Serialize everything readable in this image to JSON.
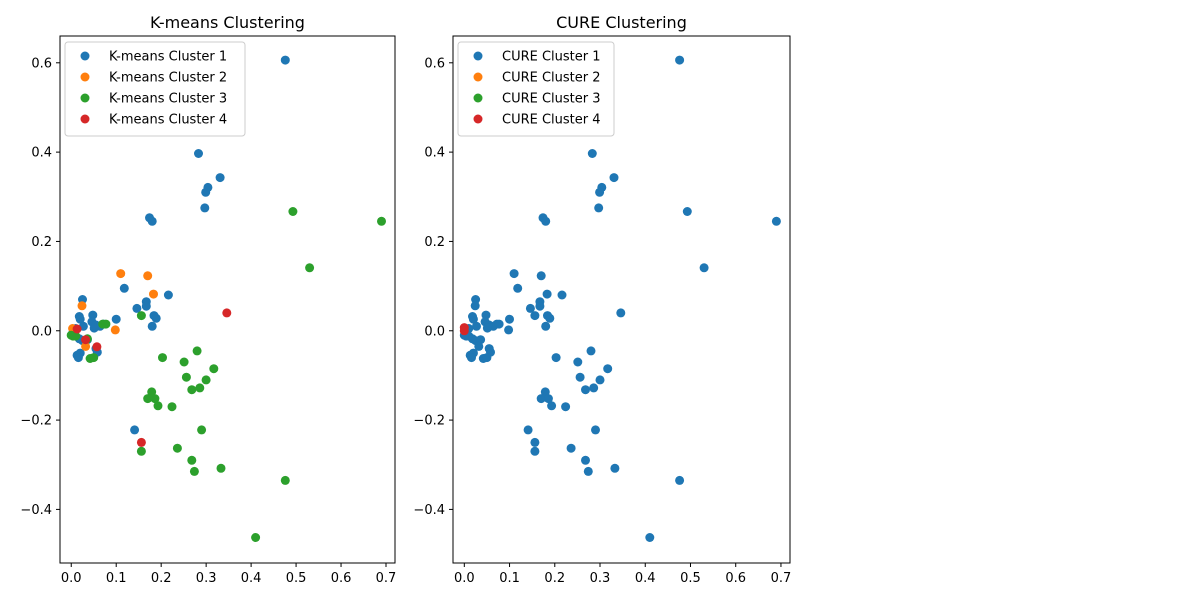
{
  "colors": {
    "tab_blue": "#1f77b4",
    "tab_orange": "#ff7f0e",
    "tab_green": "#2ca02c",
    "tab_red": "#d62728"
  },
  "chart_data": [
    {
      "type": "scatter",
      "title": "K-means Clustering",
      "xlabel": "",
      "ylabel": "",
      "xlim": [
        -0.025,
        0.72
      ],
      "ylim": [
        -0.52,
        0.66
      ],
      "xticks": [
        0.0,
        0.1,
        0.2,
        0.3,
        0.4,
        0.5,
        0.6,
        0.7
      ],
      "yticks": [
        -0.4,
        -0.2,
        0.0,
        0.2,
        0.4,
        0.6
      ],
      "xtick_labels": [
        "0.0",
        "0.1",
        "0.2",
        "0.3",
        "0.4",
        "0.5",
        "0.6",
        "0.7"
      ],
      "ytick_labels": [
        "−0.4",
        "−0.2",
        "0.0",
        "0.2",
        "0.4",
        "0.6"
      ],
      "grid": false,
      "legend": "top-left",
      "series": [
        {
          "name": "K-means Cluster 1",
          "color": "#1f77b4",
          "points": [
            [
              0.476,
              0.606
            ],
            [
              0.283,
              0.397
            ],
            [
              0.331,
              0.343
            ],
            [
              0.304,
              0.321
            ],
            [
              0.299,
              0.31
            ],
            [
              0.297,
              0.275
            ],
            [
              0.174,
              0.253
            ],
            [
              0.18,
              0.245
            ],
            [
              0.118,
              0.095
            ],
            [
              0.216,
              0.08
            ],
            [
              0.025,
              0.07
            ],
            [
              0.167,
              0.065
            ],
            [
              0.167,
              0.055
            ],
            [
              0.146,
              0.05
            ],
            [
              0.048,
              0.035
            ],
            [
              0.184,
              0.034
            ],
            [
              0.189,
              0.028
            ],
            [
              0.1,
              0.026
            ],
            [
              0.018,
              0.032
            ],
            [
              0.02,
              0.026
            ],
            [
              0.046,
              0.02
            ],
            [
              0.055,
              0.013
            ],
            [
              0.064,
              0.01
            ],
            [
              0.072,
              0.015
            ],
            [
              0.027,
              0.01
            ],
            [
              0.051,
              0.006
            ],
            [
              0.18,
              0.01
            ],
            [
              0.01,
              0.005
            ],
            [
              0.004,
              -0.004
            ],
            [
              0.008,
              -0.01
            ],
            [
              0.018,
              -0.018
            ],
            [
              0.025,
              -0.022
            ],
            [
              0.036,
              -0.02
            ],
            [
              0.055,
              -0.04
            ],
            [
              0.058,
              -0.048
            ],
            [
              0.013,
              -0.055
            ],
            [
              0.02,
              -0.05
            ],
            [
              0.016,
              -0.06
            ],
            [
              0.141,
              -0.222
            ]
          ]
        },
        {
          "name": "K-means Cluster 2",
          "color": "#ff7f0e",
          "points": [
            [
              0.11,
              0.128
            ],
            [
              0.17,
              0.123
            ],
            [
              0.183,
              0.082
            ],
            [
              0.024,
              0.056
            ],
            [
              0.098,
              0.002
            ],
            [
              0.003,
              0.005
            ],
            [
              0.032,
              -0.035
            ]
          ]
        },
        {
          "name": "K-means Cluster 3",
          "color": "#2ca02c",
          "points": [
            [
              0.493,
              0.267
            ],
            [
              0.69,
              0.245
            ],
            [
              0.53,
              0.141
            ],
            [
              0.156,
              0.034
            ],
            [
              0.07,
              0.015
            ],
            [
              0.077,
              0.015
            ],
            [
              0.0,
              -0.01
            ],
            [
              0.004,
              -0.012
            ],
            [
              0.01,
              -0.012
            ],
            [
              0.036,
              -0.018
            ],
            [
              0.042,
              -0.062
            ],
            [
              0.05,
              -0.06
            ],
            [
              0.203,
              -0.06
            ],
            [
              0.28,
              -0.045
            ],
            [
              0.251,
              -0.07
            ],
            [
              0.317,
              -0.085
            ],
            [
              0.256,
              -0.104
            ],
            [
              0.3,
              -0.11
            ],
            [
              0.286,
              -0.128
            ],
            [
              0.268,
              -0.132
            ],
            [
              0.179,
              -0.137
            ],
            [
              0.17,
              -0.152
            ],
            [
              0.186,
              -0.152
            ],
            [
              0.193,
              -0.168
            ],
            [
              0.224,
              -0.17
            ],
            [
              0.29,
              -0.222
            ],
            [
              0.236,
              -0.263
            ],
            [
              0.156,
              -0.27
            ],
            [
              0.268,
              -0.29
            ],
            [
              0.333,
              -0.308
            ],
            [
              0.274,
              -0.315
            ],
            [
              0.476,
              -0.335
            ],
            [
              0.41,
              -0.463
            ]
          ]
        },
        {
          "name": "K-means Cluster 4",
          "color": "#d62728",
          "points": [
            [
              0.346,
              0.04
            ],
            [
              0.013,
              0.004
            ],
            [
              0.032,
              -0.02
            ],
            [
              0.057,
              -0.036
            ],
            [
              0.156,
              -0.25
            ]
          ]
        }
      ]
    },
    {
      "type": "scatter",
      "title": "CURE Clustering",
      "xlabel": "",
      "ylabel": "",
      "xlim": [
        -0.025,
        0.72
      ],
      "ylim": [
        -0.52,
        0.66
      ],
      "xticks": [
        0.0,
        0.1,
        0.2,
        0.3,
        0.4,
        0.5,
        0.6,
        0.7
      ],
      "yticks": [
        -0.4,
        -0.2,
        0.0,
        0.2,
        0.4,
        0.6
      ],
      "xtick_labels": [
        "0.0",
        "0.1",
        "0.2",
        "0.3",
        "0.4",
        "0.5",
        "0.6",
        "0.7"
      ],
      "ytick_labels": [
        "−0.4",
        "−0.2",
        "0.0",
        "0.2",
        "0.4",
        "0.6"
      ],
      "grid": false,
      "legend": "top-left",
      "series": [
        {
          "name": "CURE Cluster 1",
          "color": "#1f77b4",
          "points": [
            [
              0.476,
              0.606
            ],
            [
              0.283,
              0.397
            ],
            [
              0.331,
              0.343
            ],
            [
              0.304,
              0.321
            ],
            [
              0.299,
              0.31
            ],
            [
              0.297,
              0.275
            ],
            [
              0.174,
              0.253
            ],
            [
              0.18,
              0.245
            ],
            [
              0.493,
              0.267
            ],
            [
              0.69,
              0.245
            ],
            [
              0.53,
              0.141
            ],
            [
              0.11,
              0.128
            ],
            [
              0.17,
              0.123
            ],
            [
              0.118,
              0.095
            ],
            [
              0.183,
              0.082
            ],
            [
              0.216,
              0.08
            ],
            [
              0.025,
              0.07
            ],
            [
              0.167,
              0.065
            ],
            [
              0.167,
              0.055
            ],
            [
              0.024,
              0.056
            ],
            [
              0.146,
              0.05
            ],
            [
              0.048,
              0.035
            ],
            [
              0.184,
              0.034
            ],
            [
              0.156,
              0.034
            ],
            [
              0.189,
              0.028
            ],
            [
              0.1,
              0.026
            ],
            [
              0.018,
              0.032
            ],
            [
              0.02,
              0.026
            ],
            [
              0.046,
              0.02
            ],
            [
              0.055,
              0.013
            ],
            [
              0.064,
              0.01
            ],
            [
              0.072,
              0.015
            ],
            [
              0.077,
              0.015
            ],
            [
              0.027,
              0.01
            ],
            [
              0.051,
              0.006
            ],
            [
              0.18,
              0.01
            ],
            [
              0.098,
              0.002
            ],
            [
              0.01,
              0.005
            ],
            [
              0.004,
              -0.004
            ],
            [
              0.0,
              -0.01
            ],
            [
              0.004,
              -0.012
            ],
            [
              0.01,
              -0.012
            ],
            [
              0.018,
              -0.018
            ],
            [
              0.025,
              -0.022
            ],
            [
              0.036,
              -0.02
            ],
            [
              0.032,
              -0.035
            ],
            [
              0.055,
              -0.04
            ],
            [
              0.058,
              -0.048
            ],
            [
              0.013,
              -0.055
            ],
            [
              0.02,
              -0.05
            ],
            [
              0.016,
              -0.06
            ],
            [
              0.042,
              -0.062
            ],
            [
              0.05,
              -0.06
            ],
            [
              0.203,
              -0.06
            ],
            [
              0.28,
              -0.045
            ],
            [
              0.251,
              -0.07
            ],
            [
              0.317,
              -0.085
            ],
            [
              0.256,
              -0.104
            ],
            [
              0.3,
              -0.11
            ],
            [
              0.286,
              -0.128
            ],
            [
              0.268,
              -0.132
            ],
            [
              0.179,
              -0.137
            ],
            [
              0.17,
              -0.152
            ],
            [
              0.186,
              -0.152
            ],
            [
              0.193,
              -0.168
            ],
            [
              0.224,
              -0.17
            ],
            [
              0.141,
              -0.222
            ],
            [
              0.29,
              -0.222
            ],
            [
              0.156,
              -0.25
            ],
            [
              0.236,
              -0.263
            ],
            [
              0.156,
              -0.27
            ],
            [
              0.268,
              -0.29
            ],
            [
              0.333,
              -0.308
            ],
            [
              0.274,
              -0.315
            ],
            [
              0.476,
              -0.335
            ],
            [
              0.41,
              -0.463
            ],
            [
              0.346,
              0.04
            ]
          ]
        },
        {
          "name": "CURE Cluster 2",
          "color": "#ff7f0e",
          "points": []
        },
        {
          "name": "CURE Cluster 3",
          "color": "#2ca02c",
          "points": []
        },
        {
          "name": "CURE Cluster 4",
          "color": "#d62728",
          "points": [
            [
              0.0,
              0.007
            ],
            [
              0.0,
              0.0
            ]
          ]
        }
      ]
    }
  ]
}
